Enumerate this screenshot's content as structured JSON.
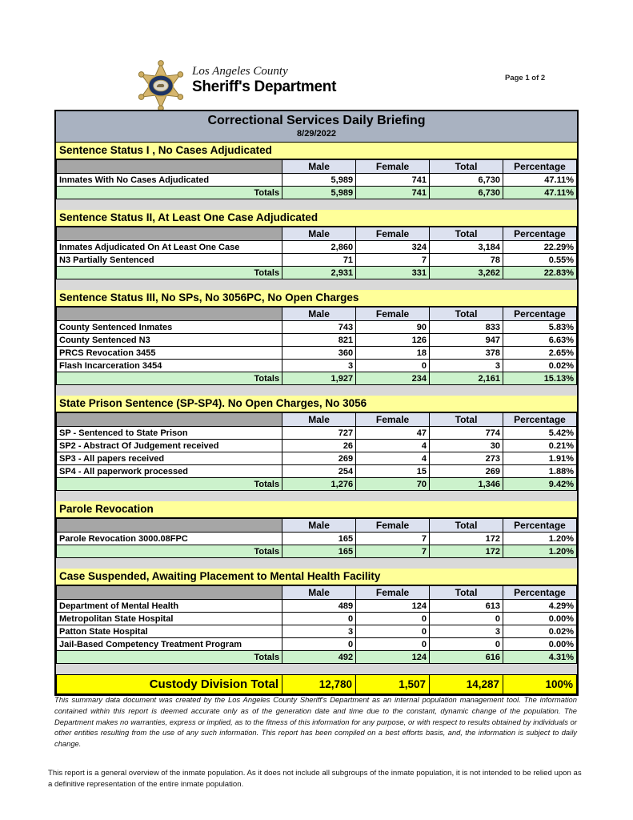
{
  "header": {
    "logo_county": "Los Angeles County",
    "logo_department": "Sheriff's Department",
    "registered_mark": "®",
    "page_label": "Page 1 of 2",
    "badge_icon": "sheriff-star-badge"
  },
  "report": {
    "title": "Correctional Services Daily Briefing",
    "date": "8/29/2022"
  },
  "table": {
    "columns": [
      "Male",
      "Female",
      "Total",
      "Percentage"
    ],
    "totals_label": "Totals"
  },
  "sections": [
    {
      "title": "Sentence Status I , No Cases Adjudicated",
      "rows": [
        {
          "label": "Inmates With No Cases Adjudicated",
          "male": "5,989",
          "female": "741",
          "total": "6,730",
          "percentage": "47.11%"
        }
      ],
      "totals": {
        "male": "5,989",
        "female": "741",
        "total": "6,730",
        "percentage": "47.11%"
      }
    },
    {
      "title": "Sentence Status II, At Least One Case Adjudicated",
      "rows": [
        {
          "label": "Inmates Adjudicated On At Least One Case",
          "male": "2,860",
          "female": "324",
          "total": "3,184",
          "percentage": "22.29%"
        },
        {
          "label": "N3 Partially Sentenced",
          "male": "71",
          "female": "7",
          "total": "78",
          "percentage": "0.55%"
        }
      ],
      "totals": {
        "male": "2,931",
        "female": "331",
        "total": "3,262",
        "percentage": "22.83%"
      }
    },
    {
      "title": "Sentence Status III, No SPs, No 3056PC, No Open Charges",
      "rows": [
        {
          "label": "County Sentenced Inmates",
          "male": "743",
          "female": "90",
          "total": "833",
          "percentage": "5.83%"
        },
        {
          "label": "County Sentenced N3",
          "male": "821",
          "female": "126",
          "total": "947",
          "percentage": "6.63%"
        },
        {
          "label": "PRCS Revocation 3455",
          "male": "360",
          "female": "18",
          "total": "378",
          "percentage": "2.65%"
        },
        {
          "label": "Flash Incarceration 3454",
          "male": "3",
          "female": "0",
          "total": "3",
          "percentage": "0.02%"
        }
      ],
      "totals": {
        "male": "1,927",
        "female": "234",
        "total": "2,161",
        "percentage": "15.13%"
      }
    },
    {
      "title": "State Prison Sentence (SP-SP4). No Open Charges, No 3056",
      "rows": [
        {
          "label": "SP - Sentenced to State Prison",
          "male": "727",
          "female": "47",
          "total": "774",
          "percentage": "5.42%"
        },
        {
          "label": "SP2 - Abstract Of Judgement received",
          "male": "26",
          "female": "4",
          "total": "30",
          "percentage": "0.21%"
        },
        {
          "label": "SP3 - All papers received",
          "male": "269",
          "female": "4",
          "total": "273",
          "percentage": "1.91%"
        },
        {
          "label": "SP4 - All paperwork processed",
          "male": "254",
          "female": "15",
          "total": "269",
          "percentage": "1.88%"
        }
      ],
      "totals": {
        "male": "1,276",
        "female": "70",
        "total": "1,346",
        "percentage": "9.42%"
      }
    },
    {
      "title": "Parole Revocation",
      "rows": [
        {
          "label": "Parole Revocation 3000.08FPC",
          "male": "165",
          "female": "7",
          "total": "172",
          "percentage": "1.20%"
        }
      ],
      "totals": {
        "male": "165",
        "female": "7",
        "total": "172",
        "percentage": "1.20%"
      }
    },
    {
      "title": "Case Suspended, Awaiting Placement to Mental Health Facility",
      "rows": [
        {
          "label": "Department of Mental Health",
          "male": "489",
          "female": "124",
          "total": "613",
          "percentage": "4.29%"
        },
        {
          "label": "Metropolitan State Hospital",
          "male": "0",
          "female": "0",
          "total": "0",
          "percentage": "0.00%"
        },
        {
          "label": "Patton State Hospital",
          "male": "3",
          "female": "0",
          "total": "3",
          "percentage": "0.02%"
        },
        {
          "label": "Jail-Based Competency Treatment Program",
          "male": "0",
          "female": "0",
          "total": "0",
          "percentage": "0.00%"
        }
      ],
      "totals": {
        "male": "492",
        "female": "124",
        "total": "616",
        "percentage": "4.31%"
      }
    }
  ],
  "grand_total": {
    "label": "Custody Division Total",
    "male": "12,780",
    "female": "1,507",
    "total": "14,287",
    "percentage": "100%"
  },
  "footer": {
    "disclaimer": "This summary data document was created by the Los Angeles County Sheriff's Department as an internal population management tool.  The information contained within this report is deemed accurate only as of the generation date and time due to the constant, dynamic change of the population.  The Department makes no warranties, express or implied, as to the fitness of this information for any purpose, or with respect to results obtained by individuals or other entities resulting from the use of any such information.  This report has been compiled on a best efforts basis, and, the information is subject to daily change.",
    "note": "This report is a general overview of the inmate population.  As it does not include all subgroups of the inmate population, it is not intended to be relied upon as a definitive representation of the entire inmate population."
  },
  "colors": {
    "title_bar": "#a9b2c1",
    "section_header": "#ffff99",
    "column_header": "#dce1ef",
    "corner_cell": "#a6a6a6",
    "totals_row": "#ccf2cc",
    "grand_total_row": "#ffff00",
    "spacer": "#d9d9d9"
  }
}
